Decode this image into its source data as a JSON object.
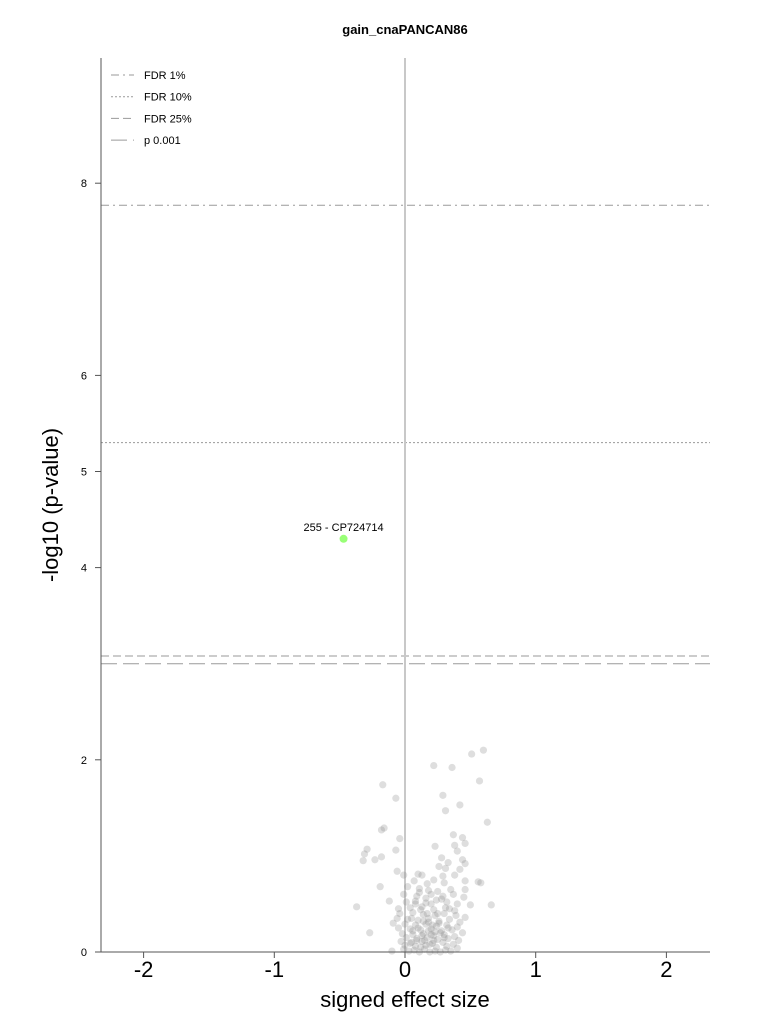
{
  "chart_data": {
    "type": "scatter",
    "title": "gain_cnaPANCAN86",
    "xlabel": "signed effect size",
    "ylabel": "-log10 (p-value)",
    "xlim": [
      -2.35,
      2.35
    ],
    "ylim": [
      0,
      9.2
    ],
    "x_ticks": [
      -2,
      -1,
      0,
      1,
      2
    ],
    "y_ticks": [
      0,
      2,
      4,
      5,
      6,
      8
    ],
    "x_tick_labels": [
      "-2",
      "-1",
      "0",
      "1",
      "2"
    ],
    "y_tick_labels": [
      "0",
      "2",
      "4",
      "5",
      "6",
      "8"
    ],
    "legend": {
      "position": "top-left",
      "entries": [
        {
          "label": "FDR 1%",
          "dash": "dashdot"
        },
        {
          "label": "FDR 10%",
          "dash": "dotted"
        },
        {
          "label": "FDR 25%",
          "dash": "dashed"
        },
        {
          "label": "p 0.001",
          "dash": "longdash"
        }
      ]
    },
    "thresholds": [
      {
        "label": "FDR 1%",
        "y": 7.77
      },
      {
        "label": "FDR 10%",
        "y": 5.3
      },
      {
        "label": "FDR 25%",
        "y": 3.08
      },
      {
        "label": "p 0.001",
        "y": 3.0
      }
    ],
    "highlight": {
      "label": "255 - CP724714",
      "x": -0.47,
      "y": 4.3,
      "color": "#99ff77"
    },
    "points_color": "#888888",
    "points": [
      [
        0.6,
        2.1
      ],
      [
        0.51,
        2.06
      ],
      [
        0.22,
        1.94
      ],
      [
        0.36,
        1.92
      ],
      [
        0.57,
        1.78
      ],
      [
        -0.17,
        1.74
      ],
      [
        0.29,
        1.63
      ],
      [
        -0.07,
        1.6
      ],
      [
        0.42,
        1.53
      ],
      [
        0.31,
        1.47
      ],
      [
        0.63,
        1.35
      ],
      [
        -0.16,
        1.29
      ],
      [
        -0.18,
        1.27
      ],
      [
        0.37,
        1.22
      ],
      [
        -0.04,
        1.18
      ],
      [
        0.44,
        1.19
      ],
      [
        0.46,
        1.13
      ],
      [
        0.38,
        1.11
      ],
      [
        -0.29,
        1.07
      ],
      [
        -0.31,
        1.02
      ],
      [
        -0.07,
        1.06
      ],
      [
        0.23,
        1.1
      ],
      [
        0.4,
        1.05
      ],
      [
        0.28,
        0.98
      ],
      [
        -0.23,
        0.96
      ],
      [
        -0.18,
        0.99
      ],
      [
        -0.32,
        0.95
      ],
      [
        0.44,
        0.96
      ],
      [
        0.33,
        0.93
      ],
      [
        0.46,
        0.92
      ],
      [
        0.26,
        0.89
      ],
      [
        0.31,
        0.87
      ],
      [
        0.42,
        0.86
      ],
      [
        -0.06,
        0.84
      ],
      [
        -0.01,
        0.8
      ],
      [
        0.1,
        0.81
      ],
      [
        0.13,
        0.8
      ],
      [
        0.29,
        0.79
      ],
      [
        0.38,
        0.8
      ],
      [
        0.56,
        0.73
      ],
      [
        0.58,
        0.72
      ],
      [
        0.07,
        0.74
      ],
      [
        0.17,
        0.71
      ],
      [
        0.22,
        0.75
      ],
      [
        0.3,
        0.72
      ],
      [
        0.46,
        0.74
      ],
      [
        -0.19,
        0.68
      ],
      [
        0.02,
        0.68
      ],
      [
        0.11,
        0.66
      ],
      [
        0.18,
        0.64
      ],
      [
        0.25,
        0.63
      ],
      [
        0.35,
        0.65
      ],
      [
        0.46,
        0.65
      ],
      [
        -0.01,
        0.6
      ],
      [
        0.09,
        0.58
      ],
      [
        0.2,
        0.6
      ],
      [
        0.29,
        0.58
      ],
      [
        0.37,
        0.6
      ],
      [
        0.45,
        0.57
      ],
      [
        -0.12,
        0.53
      ],
      [
        0.01,
        0.52
      ],
      [
        0.08,
        0.53
      ],
      [
        0.16,
        0.51
      ],
      [
        0.24,
        0.54
      ],
      [
        0.32,
        0.52
      ],
      [
        0.4,
        0.5
      ],
      [
        0.5,
        0.49
      ],
      [
        0.66,
        0.49
      ],
      [
        -0.37,
        0.47
      ],
      [
        -0.05,
        0.45
      ],
      [
        0.04,
        0.46
      ],
      [
        0.13,
        0.47
      ],
      [
        0.22,
        0.44
      ],
      [
        0.31,
        0.46
      ],
      [
        0.38,
        0.43
      ],
      [
        -0.04,
        0.4
      ],
      [
        0.06,
        0.41
      ],
      [
        0.14,
        0.39
      ],
      [
        0.23,
        0.38
      ],
      [
        0.3,
        0.4
      ],
      [
        0.39,
        0.38
      ],
      [
        0.46,
        0.36
      ],
      [
        -0.06,
        0.35
      ],
      [
        0.02,
        0.34
      ],
      [
        0.1,
        0.33
      ],
      [
        0.18,
        0.35
      ],
      [
        0.26,
        0.32
      ],
      [
        0.34,
        0.34
      ],
      [
        0.42,
        0.31
      ],
      [
        -0.09,
        0.3
      ],
      [
        0.0,
        0.29
      ],
      [
        0.08,
        0.28
      ],
      [
        0.16,
        0.29
      ],
      [
        0.24,
        0.27
      ],
      [
        0.32,
        0.28
      ],
      [
        0.4,
        0.26
      ],
      [
        -0.05,
        0.25
      ],
      [
        0.04,
        0.24
      ],
      [
        0.12,
        0.23
      ],
      [
        0.2,
        0.24
      ],
      [
        0.28,
        0.22
      ],
      [
        0.36,
        0.23
      ],
      [
        0.44,
        0.2
      ],
      [
        -0.27,
        0.2
      ],
      [
        -0.02,
        0.19
      ],
      [
        0.06,
        0.18
      ],
      [
        0.14,
        0.19
      ],
      [
        0.22,
        0.17
      ],
      [
        0.3,
        0.18
      ],
      [
        0.38,
        0.16
      ],
      [
        0.01,
        0.15
      ],
      [
        0.09,
        0.14
      ],
      [
        0.17,
        0.15
      ],
      [
        0.25,
        0.13
      ],
      [
        0.33,
        0.14
      ],
      [
        0.41,
        0.12
      ],
      [
        -0.03,
        0.11
      ],
      [
        0.05,
        0.1
      ],
      [
        0.13,
        0.11
      ],
      [
        0.21,
        0.09
      ],
      [
        0.29,
        0.1
      ],
      [
        0.37,
        0.08
      ],
      [
        0.0,
        0.07
      ],
      [
        0.08,
        0.06
      ],
      [
        0.16,
        0.07
      ],
      [
        0.24,
        0.05
      ],
      [
        0.32,
        0.06
      ],
      [
        0.4,
        0.04
      ],
      [
        -0.01,
        0.03
      ],
      [
        0.07,
        0.02
      ],
      [
        0.15,
        0.03
      ],
      [
        0.23,
        0.01
      ],
      [
        0.31,
        0.02
      ],
      [
        0.11,
        0.0
      ],
      [
        0.19,
        0.0
      ],
      [
        0.27,
        0.0
      ],
      [
        -0.1,
        0.01
      ],
      [
        0.03,
        0.01
      ],
      [
        0.35,
        0.01
      ],
      [
        0.12,
        0.44
      ],
      [
        0.18,
        0.22
      ],
      [
        0.26,
        0.3
      ],
      [
        0.2,
        0.5
      ],
      [
        0.1,
        0.25
      ],
      [
        0.15,
        0.12
      ],
      [
        0.05,
        0.35
      ],
      [
        0.25,
        0.4
      ],
      [
        0.3,
        0.15
      ],
      [
        0.21,
        0.28
      ],
      [
        0.08,
        0.5
      ],
      [
        0.28,
        0.55
      ],
      [
        0.34,
        0.45
      ],
      [
        0.16,
        0.56
      ],
      [
        0.11,
        0.62
      ],
      [
        0.09,
        0.12
      ],
      [
        0.19,
        0.08
      ],
      [
        0.06,
        0.22
      ],
      [
        0.14,
        0.32
      ],
      [
        0.22,
        0.12
      ],
      [
        0.27,
        0.2
      ],
      [
        0.17,
        0.4
      ],
      [
        0.04,
        0.09
      ],
      [
        0.12,
        0.05
      ],
      [
        0.2,
        0.18
      ],
      [
        0.33,
        0.25
      ],
      [
        0.13,
        0.17
      ],
      [
        0.23,
        0.21
      ],
      [
        0.18,
        0.31
      ]
    ]
  }
}
